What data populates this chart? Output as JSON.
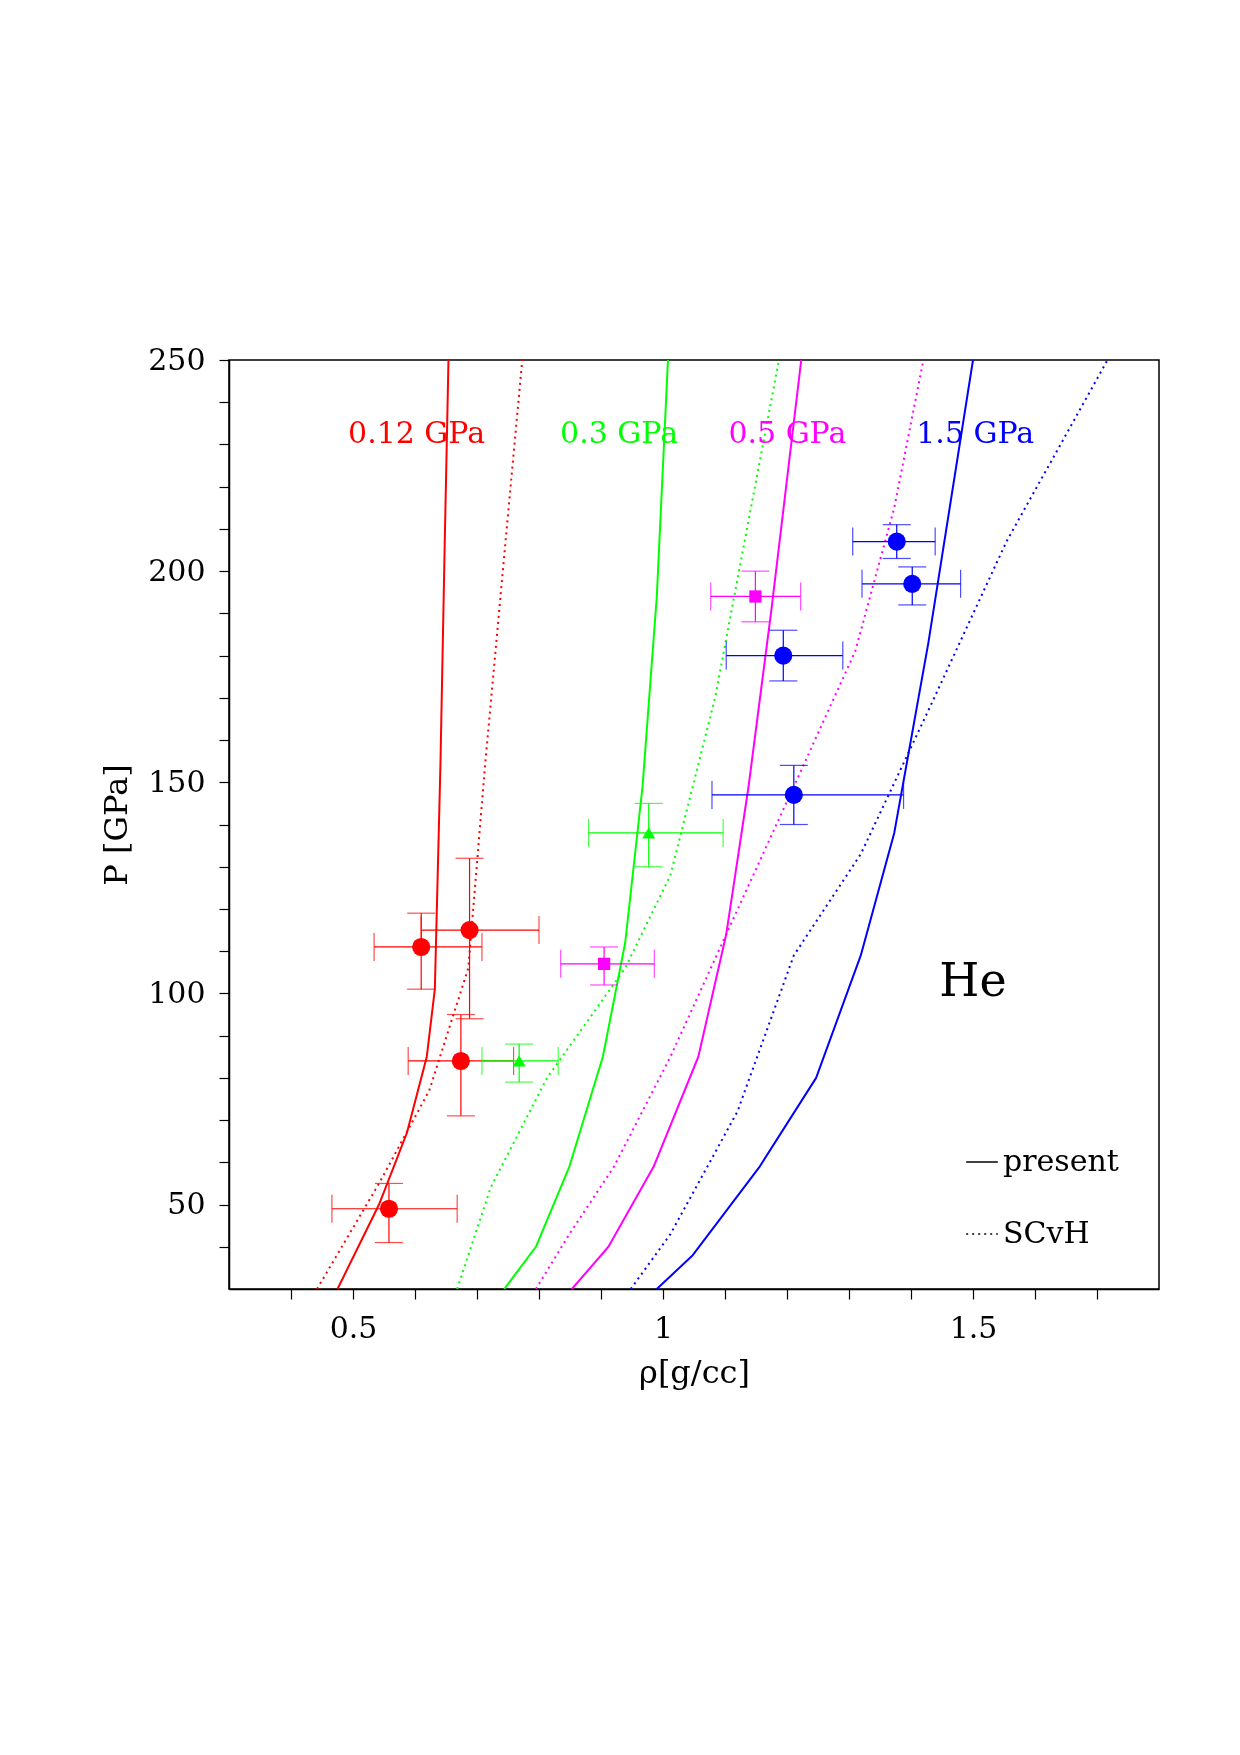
{
  "chart_data": {
    "type": "line",
    "xlabel": "ρ[g/cc]",
    "ylabel": "P [GPa]",
    "xlim": [
      0.3,
      1.8
    ],
    "ylim": [
      30,
      250
    ],
    "xticks": [
      {
        "value": 0.4,
        "label": null
      },
      0.5,
      {
        "value": 0.6,
        "label": null
      },
      {
        "value": 0.7,
        "label": null
      },
      {
        "value": 0.8,
        "label": null
      },
      {
        "value": 0.9,
        "label": null
      },
      1,
      {
        "value": 1.1,
        "label": null
      },
      {
        "value": 1.2,
        "label": null
      },
      {
        "value": 1.3,
        "label": null
      },
      {
        "value": 1.4,
        "label": null
      },
      1.5,
      {
        "value": 1.6,
        "label": null
      },
      {
        "value": 1.7,
        "label": null
      }
    ],
    "yticks": [
      {
        "value": 40,
        "label": null
      },
      50,
      {
        "value": 60,
        "label": null
      },
      {
        "value": 70,
        "label": null
      },
      {
        "value": 80,
        "label": null
      },
      {
        "value": 90,
        "label": null
      },
      100,
      {
        "value": 110,
        "label": null
      },
      {
        "value": 120,
        "label": null
      },
      {
        "value": 130,
        "label": null
      },
      {
        "value": 140,
        "label": null
      },
      150,
      {
        "value": 160,
        "label": null
      },
      {
        "value": 170,
        "label": null
      },
      {
        "value": 180,
        "label": null
      },
      {
        "value": 190,
        "label": null
      },
      200,
      {
        "value": 210,
        "label": null
      },
      {
        "value": 220,
        "label": null
      },
      {
        "value": 230,
        "label": null
      },
      {
        "value": 240,
        "label": null
      },
      250
    ],
    "grid": false,
    "legend": "bottom right",
    "series": [
      {
        "name": "present",
        "type": "line",
        "line_style": "solid",
        "color": "#ff0000",
        "x": [
          0.475,
          0.542,
          0.587,
          0.619,
          0.632,
          0.641,
          0.648,
          0.654
        ],
        "values": [
          30,
          50,
          67,
          85,
          101,
          154,
          207,
          250
        ]
      },
      {
        "name": "SCvH",
        "type": "line",
        "line_style": "dotted",
        "color": "#ff0000",
        "x": [
          0.442,
          0.542,
          0.623,
          0.686,
          0.713,
          0.741,
          0.773
        ],
        "values": [
          30,
          55,
          77,
          106,
          154,
          199,
          250
        ]
      },
      {
        "type": "line",
        "line_style": "solid",
        "color": "#00ff00",
        "x": [
          0.744,
          0.795,
          0.849,
          0.903,
          0.939,
          0.967,
          0.99,
          1.008
        ],
        "values": [
          30,
          40,
          59,
          85,
          112,
          149,
          194,
          250
        ]
      },
      {
        "type": "line",
        "line_style": "dotted",
        "color": "#00ff00",
        "x": [
          0.668,
          0.722,
          0.813,
          0.939,
          1.012,
          1.084,
          1.138,
          1.187
        ],
        "values": [
          30,
          54,
          80,
          106,
          128,
          170,
          212,
          250
        ]
      },
      {
        "type": "line",
        "line_style": "solid",
        "color": "#ff00ff",
        "x": [
          0.853,
          0.912,
          0.985,
          1.057,
          1.102,
          1.138,
          1.175,
          1.223
        ],
        "values": [
          30,
          40,
          59,
          85,
          114,
          149,
          191,
          250
        ]
      },
      {
        "type": "line",
        "line_style": "dotted",
        "color": "#ff00ff",
        "x": [
          0.795,
          0.849,
          0.921,
          1.012,
          1.102,
          1.211,
          1.31,
          1.373,
          1.42
        ],
        "values": [
          30,
          43,
          59,
          85,
          114,
          149,
          181,
          215,
          250
        ]
      },
      {
        "type": "line",
        "line_style": "solid",
        "color": "#0000ff",
        "x": [
          0.99,
          1.048,
          1.156,
          1.247,
          1.319,
          1.373,
          1.428,
          1.5
        ],
        "values": [
          30,
          38,
          59,
          80,
          109,
          138,
          183,
          250
        ]
      },
      {
        "type": "line",
        "line_style": "dotted",
        "color": "#0000ff",
        "x": [
          0.948,
          1.012,
          1.12,
          1.211,
          1.319,
          1.428,
          1.554,
          1.717
        ],
        "values": [
          30,
          43,
          72,
          109,
          133,
          167,
          207,
          250
        ]
      },
      {
        "type": "scatter",
        "marker": "circle",
        "color": "#ff0000",
        "x": [
          0.558,
          0.61,
          0.688,
          0.674
        ],
        "values": [
          49,
          111,
          115,
          84
        ],
        "errors": [
          [
            41,
            55
          ],
          [
            101,
            119
          ],
          [
            94,
            132
          ],
          [
            71,
            95
          ]
        ],
        "xerrors": [
          [
            0.466,
            0.668
          ],
          [
            0.534,
            0.708
          ],
          [
            0.61,
            0.8
          ],
          [
            0.589,
            0.759
          ]
        ]
      },
      {
        "type": "scatter",
        "marker": "triangle",
        "color": "#00ff00",
        "x": [
          0.768,
          0.977
        ],
        "values": [
          84,
          138
        ],
        "errors": [
          [
            79,
            88
          ],
          [
            130,
            145
          ]
        ],
        "xerrors": [
          [
            0.708,
            0.831
          ],
          [
            0.88,
            1.097
          ]
        ]
      },
      {
        "type": "scatter",
        "marker": "square",
        "color": "#ff00ff",
        "x": [
          0.905,
          1.149
        ],
        "values": [
          107,
          194
        ],
        "errors": [
          [
            102,
            111
          ],
          [
            188,
            200
          ]
        ],
        "xerrors": [
          [
            0.835,
            0.986
          ],
          [
            1.077,
            1.222
          ]
        ]
      },
      {
        "type": "scatter",
        "marker": "circle",
        "color": "#0000ff",
        "x": [
          1.194,
          1.211,
          1.377,
          1.402
        ],
        "values": [
          180,
          147,
          207,
          197
        ],
        "errors": [
          [
            174,
            186
          ],
          [
            140,
            154
          ],
          [
            203,
            211
          ],
          [
            192,
            201
          ]
        ],
        "xerrors": [
          [
            1.102,
            1.29
          ],
          [
            1.079,
            1.388
          ],
          [
            1.306,
            1.439
          ],
          [
            1.321,
            1.48
          ]
        ]
      }
    ],
    "annotations": [
      "0.12 GPa",
      "0.3 GPa",
      "0.5 GPa",
      "1.5 GPa",
      "He"
    ]
  }
}
